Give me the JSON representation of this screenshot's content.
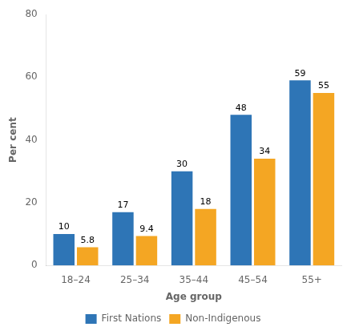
{
  "chart_data": {
    "type": "bar",
    "categories": [
      "18–24",
      "25–34",
      "35–44",
      "45–54",
      "55+"
    ],
    "series": [
      {
        "name": "First Nations",
        "color": "#2E75B6",
        "values": [
          10,
          17,
          30,
          48,
          59
        ]
      },
      {
        "name": "Non-Indigenous",
        "color": "#F4A623",
        "values": [
          5.8,
          9.4,
          18,
          34,
          55
        ]
      }
    ],
    "xlabel": "Age group",
    "ylabel": "Per cent",
    "ylim": [
      0,
      80
    ],
    "yticks": [
      0,
      20,
      40,
      60,
      80
    ],
    "grid": false,
    "legend": "bottom",
    "data_labels": true
  }
}
